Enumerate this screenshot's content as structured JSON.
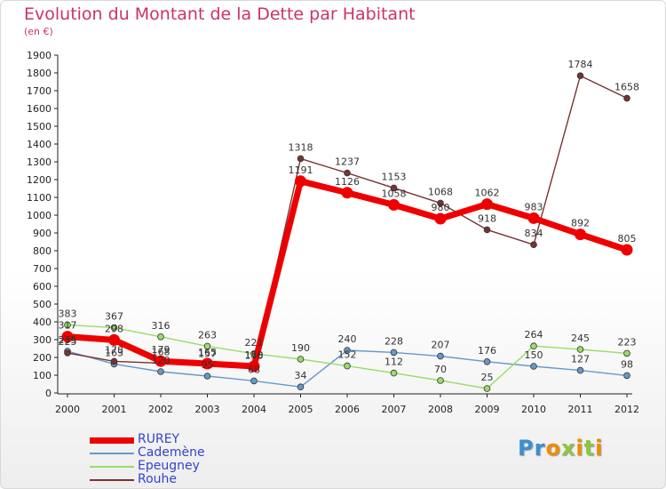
{
  "chart_data": {
    "type": "line",
    "title": "Evolution du Montant de la Dette par Habitant",
    "unit_label": "(en €)",
    "xlabel": "",
    "ylabel": "",
    "x": [
      "2000",
      "2001",
      "2002",
      "2003",
      "2004",
      "2005",
      "2006",
      "2007",
      "2008",
      "2009",
      "2010",
      "2011",
      "2012"
    ],
    "ylim": [
      0,
      1900
    ],
    "yticks": [
      0,
      100,
      200,
      300,
      400,
      500,
      600,
      700,
      800,
      900,
      1000,
      1100,
      1200,
      1300,
      1400,
      1500,
      1600,
      1700,
      1800,
      1900
    ],
    "grid": false,
    "legend_position": "bottom-left",
    "series": [
      {
        "name": "RUREY",
        "color": "#ee0000",
        "values": [
          317,
          298,
          179,
          165,
          150,
          1191,
          1126,
          1058,
          980,
          1062,
          983,
          892,
          805
        ]
      },
      {
        "name": "Cademène",
        "color": "#6699cc",
        "values": [
          235,
          163,
          120,
          95,
          68,
          34,
          240,
          228,
          207,
          176,
          150,
          127,
          98
        ]
      },
      {
        "name": "Epeugney",
        "color": "#99dd66",
        "values": [
          383,
          367,
          316,
          263,
          221,
          190,
          152,
          112,
          70,
          25,
          264,
          245,
          223
        ]
      },
      {
        "name": "Rouhe",
        "color": "#773333",
        "values": [
          225,
          178,
          168,
          157,
          148,
          1318,
          1237,
          1153,
          1068,
          918,
          834,
          1784,
          1658
        ]
      }
    ]
  },
  "brand": {
    "text": "Proxiti",
    "letter_colors": [
      "#3b8fd4",
      "#3b8fd4",
      "#f08c00",
      "#8cc63f",
      "#f08c00",
      "#8cc63f",
      "#f08c00"
    ]
  }
}
